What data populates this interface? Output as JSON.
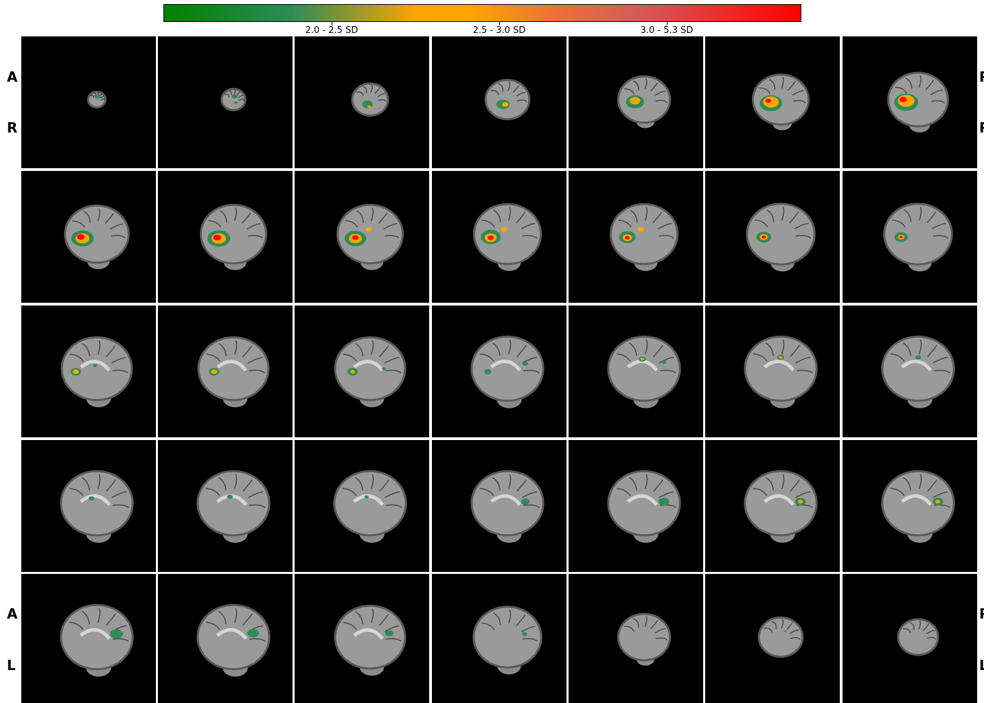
{
  "colorbar": {
    "labels": [
      "2.0 - 2.5 SD",
      "2.5 - 3.0 SD",
      "3.0 - 5.3 SD"
    ],
    "colors": {
      "low": "#2e8b57",
      "mid": "#ffa500",
      "high": "#ff0000"
    }
  },
  "orientation": {
    "top_left": [
      "A",
      "R"
    ],
    "top_right": [
      "P",
      "R"
    ],
    "bottom_left": [
      "A",
      "L"
    ],
    "bottom_right": [
      "P",
      "L"
    ]
  },
  "grid": {
    "rows": 5,
    "cols": 7
  },
  "slices": [
    {
      "scale": 0.22,
      "blobs": [
        {
          "dx": 0.1,
          "dy": -0.4,
          "r": 0.35,
          "lvl": 0
        }
      ]
    },
    {
      "scale": 0.3,
      "blobs": [
        {
          "dx": 0.1,
          "dy": -0.3,
          "r": 0.25,
          "lvl": 0
        },
        {
          "dx": 0.2,
          "dy": 0.3,
          "r": 0.15,
          "lvl": 0
        }
      ]
    },
    {
      "scale": 0.45,
      "blobs": [
        {
          "dx": -0.15,
          "dy": 0.3,
          "r": 0.3,
          "lvl": 0
        },
        {
          "dx": -0.05,
          "dy": 0.45,
          "r": 0.1,
          "lvl": 1
        }
      ]
    },
    {
      "scale": 0.55,
      "blobs": [
        {
          "dx": -0.2,
          "dy": 0.25,
          "r": 0.3,
          "lvl": 0
        },
        {
          "dx": -0.1,
          "dy": 0.25,
          "r": 0.15,
          "lvl": 1
        }
      ]
    },
    {
      "scale": 0.65,
      "blobs": [
        {
          "dx": -0.35,
          "dy": 0.1,
          "r": 0.35,
          "lvl": 0
        },
        {
          "dx": -0.35,
          "dy": 0.05,
          "r": 0.2,
          "lvl": 1
        }
      ]
    },
    {
      "scale": 0.7,
      "blobs": [
        {
          "dx": -0.35,
          "dy": 0.15,
          "r": 0.4,
          "lvl": 0
        },
        {
          "dx": -0.35,
          "dy": 0.1,
          "r": 0.28,
          "lvl": 1
        },
        {
          "dx": -0.45,
          "dy": 0.05,
          "r": 0.1,
          "lvl": 2
        }
      ]
    },
    {
      "scale": 0.75,
      "blobs": [
        {
          "dx": -0.4,
          "dy": 0.1,
          "r": 0.4,
          "lvl": 0
        },
        {
          "dx": -0.4,
          "dy": 0.05,
          "r": 0.28,
          "lvl": 1
        },
        {
          "dx": -0.5,
          "dy": 0.0,
          "r": 0.12,
          "lvl": 2
        }
      ]
    },
    {
      "scale": 0.8,
      "blobs": [
        {
          "dx": -0.45,
          "dy": 0.15,
          "r": 0.35,
          "lvl": 0
        },
        {
          "dx": -0.45,
          "dy": 0.15,
          "r": 0.22,
          "lvl": 1
        },
        {
          "dx": -0.5,
          "dy": 0.1,
          "r": 0.12,
          "lvl": 2
        }
      ]
    },
    {
      "scale": 0.82,
      "blobs": [
        {
          "dx": -0.45,
          "dy": 0.15,
          "r": 0.35,
          "lvl": 0
        },
        {
          "dx": -0.45,
          "dy": 0.15,
          "r": 0.22,
          "lvl": 1
        },
        {
          "dx": -0.5,
          "dy": 0.12,
          "r": 0.12,
          "lvl": 2
        }
      ]
    },
    {
      "scale": 0.82,
      "blobs": [
        {
          "dx": -0.45,
          "dy": 0.15,
          "r": 0.33,
          "lvl": 0
        },
        {
          "dx": -0.45,
          "dy": 0.15,
          "r": 0.2,
          "lvl": 1
        },
        {
          "dx": -0.45,
          "dy": 0.12,
          "r": 0.1,
          "lvl": 2
        },
        {
          "dx": -0.05,
          "dy": -0.15,
          "r": 0.1,
          "lvl": 1
        }
      ]
    },
    {
      "scale": 0.84,
      "blobs": [
        {
          "dx": -0.5,
          "dy": 0.1,
          "r": 0.3,
          "lvl": 0
        },
        {
          "dx": -0.5,
          "dy": 0.12,
          "r": 0.18,
          "lvl": 1
        },
        {
          "dx": -0.5,
          "dy": 0.12,
          "r": 0.09,
          "lvl": 2
        },
        {
          "dx": -0.1,
          "dy": -0.15,
          "r": 0.1,
          "lvl": 1
        }
      ]
    },
    {
      "scale": 0.84,
      "blobs": [
        {
          "dx": -0.5,
          "dy": 0.1,
          "r": 0.25,
          "lvl": 0
        },
        {
          "dx": -0.5,
          "dy": 0.12,
          "r": 0.14,
          "lvl": 1
        },
        {
          "dx": -0.5,
          "dy": 0.12,
          "r": 0.07,
          "lvl": 2
        },
        {
          "dx": -0.1,
          "dy": -0.15,
          "r": 0.1,
          "lvl": 1
        }
      ]
    },
    {
      "scale": 0.85,
      "blobs": [
        {
          "dx": -0.5,
          "dy": 0.1,
          "r": 0.22,
          "lvl": 0
        },
        {
          "dx": -0.5,
          "dy": 0.1,
          "r": 0.12,
          "lvl": 1
        },
        {
          "dx": -0.5,
          "dy": 0.1,
          "r": 0.06,
          "lvl": 2
        }
      ]
    },
    {
      "scale": 0.85,
      "blobs": [
        {
          "dx": -0.5,
          "dy": 0.1,
          "r": 0.2,
          "lvl": 0
        },
        {
          "dx": -0.5,
          "dy": 0.1,
          "r": 0.1,
          "lvl": 1
        },
        {
          "dx": -0.5,
          "dy": 0.1,
          "r": 0.05,
          "lvl": 2
        }
      ]
    },
    {
      "scale": 0.88,
      "blobs": [
        {
          "dx": -0.6,
          "dy": 0.1,
          "r": 0.15,
          "lvl": 0
        },
        {
          "dx": -0.6,
          "dy": 0.1,
          "r": 0.09,
          "lvl": 1
        },
        {
          "dx": -0.05,
          "dy": -0.1,
          "r": 0.06,
          "lvl": 0
        }
      ]
    },
    {
      "scale": 0.88,
      "blobs": [
        {
          "dx": -0.55,
          "dy": 0.1,
          "r": 0.15,
          "lvl": 0
        },
        {
          "dx": -0.55,
          "dy": 0.1,
          "r": 0.09,
          "lvl": 1
        }
      ]
    },
    {
      "scale": 0.88,
      "blobs": [
        {
          "dx": -0.5,
          "dy": 0.1,
          "r": 0.15,
          "lvl": 0
        },
        {
          "dx": -0.5,
          "dy": 0.1,
          "r": 0.07,
          "lvl": 1
        },
        {
          "dx": 0.4,
          "dy": 0.0,
          "r": 0.06,
          "lvl": 0
        }
      ]
    },
    {
      "scale": 0.9,
      "blobs": [
        {
          "dx": -0.55,
          "dy": 0.1,
          "r": 0.1,
          "lvl": 0
        },
        {
          "dx": 0.5,
          "dy": -0.15,
          "r": 0.08,
          "lvl": 0
        }
      ]
    },
    {
      "scale": 0.9,
      "blobs": [
        {
          "dx": -0.05,
          "dy": -0.3,
          "r": 0.1,
          "lvl": 0
        },
        {
          "dx": -0.05,
          "dy": -0.3,
          "r": 0.05,
          "lvl": 1
        },
        {
          "dx": 0.55,
          "dy": -0.2,
          "r": 0.07,
          "lvl": 0
        }
      ]
    },
    {
      "scale": 0.9,
      "blobs": [
        {
          "dx": 0.0,
          "dy": -0.35,
          "r": 0.1,
          "lvl": 0
        },
        {
          "dx": 0.0,
          "dy": -0.35,
          "r": 0.05,
          "lvl": 1
        }
      ]
    },
    {
      "scale": 0.9,
      "blobs": [
        {
          "dx": 0.0,
          "dy": -0.35,
          "r": 0.08,
          "lvl": 0
        }
      ]
    },
    {
      "scale": 0.9,
      "blobs": [
        {
          "dx": -0.15,
          "dy": -0.15,
          "r": 0.08,
          "lvl": 0
        }
      ]
    },
    {
      "scale": 0.9,
      "blobs": [
        {
          "dx": -0.1,
          "dy": -0.2,
          "r": 0.08,
          "lvl": 0
        }
      ]
    },
    {
      "scale": 0.9,
      "blobs": [
        {
          "dx": -0.1,
          "dy": -0.2,
          "r": 0.06,
          "lvl": 0
        }
      ]
    },
    {
      "scale": 0.9,
      "blobs": [
        {
          "dx": 0.5,
          "dy": -0.05,
          "r": 0.12,
          "lvl": 0
        }
      ]
    },
    {
      "scale": 0.9,
      "blobs": [
        {
          "dx": 0.55,
          "dy": -0.05,
          "r": 0.15,
          "lvl": 0
        }
      ]
    },
    {
      "scale": 0.9,
      "blobs": [
        {
          "dx": 0.55,
          "dy": -0.05,
          "r": 0.15,
          "lvl": 0
        },
        {
          "dx": 0.55,
          "dy": -0.05,
          "r": 0.07,
          "lvl": 1
        }
      ]
    },
    {
      "scale": 0.9,
      "blobs": [
        {
          "dx": 0.55,
          "dy": -0.05,
          "r": 0.15,
          "lvl": 0
        },
        {
          "dx": 0.55,
          "dy": -0.05,
          "r": 0.07,
          "lvl": 1
        }
      ]
    },
    {
      "scale": 0.9,
      "blobs": [
        {
          "dx": 0.55,
          "dy": -0.1,
          "r": 0.18,
          "lvl": 0
        }
      ]
    },
    {
      "scale": 0.9,
      "blobs": [
        {
          "dx": 0.55,
          "dy": -0.12,
          "r": 0.16,
          "lvl": 0
        }
      ]
    },
    {
      "scale": 0.88,
      "blobs": [
        {
          "dx": 0.55,
          "dy": -0.12,
          "r": 0.12,
          "lvl": 0
        }
      ]
    },
    {
      "scale": 0.85,
      "blobs": [
        {
          "dx": 0.5,
          "dy": -0.1,
          "r": 0.08,
          "lvl": 0
        }
      ]
    },
    {
      "scale": 0.65,
      "blobs": []
    },
    {
      "scale": 0.55,
      "blobs": [
        {
          "dx": 0.2,
          "dy": -0.3,
          "r": 0.06,
          "lvl": 0
        }
      ]
    },
    {
      "scale": 0.5,
      "blobs": []
    }
  ]
}
